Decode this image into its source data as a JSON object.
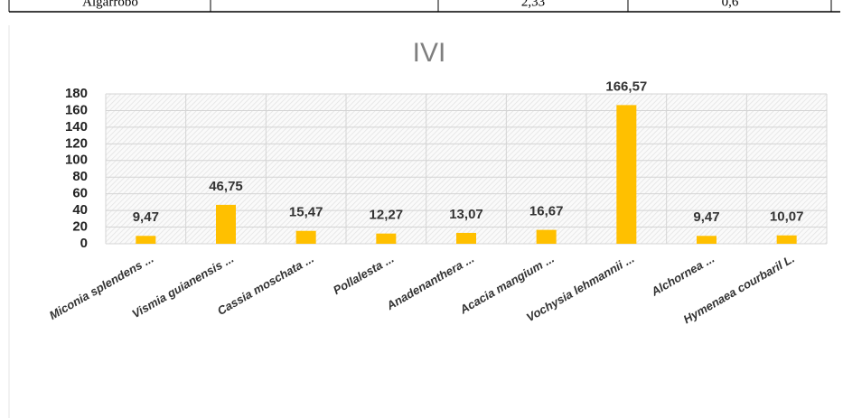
{
  "table_fragment": {
    "cells": [
      "Algarrobo",
      "2,33",
      "0,6"
    ]
  },
  "chart_data": {
    "type": "bar",
    "title": "IVI",
    "categories": [
      "Miconia splendens ...",
      "Vismia guianensis ...",
      "Cassia moschata ...",
      "Pollalesta ...",
      "Anadenanthera ...",
      "Acacia mangium ...",
      "Vochysia lehmannii ...",
      "Alchornea ...",
      "Hymenaea courbaril  L."
    ],
    "values": [
      9.47,
      46.75,
      15.47,
      12.27,
      13.07,
      16.67,
      166.57,
      9.47,
      10.07
    ],
    "value_labels": [
      "9,47",
      "46,75",
      "15,47",
      "12,27",
      "13,07",
      "16,67",
      "166,57",
      "9,47",
      "10,07"
    ],
    "color": "#ffc000",
    "ylim": [
      0,
      180
    ],
    "yticks": [
      0,
      20,
      40,
      60,
      80,
      100,
      120,
      140,
      160,
      180
    ],
    "grid": true
  }
}
